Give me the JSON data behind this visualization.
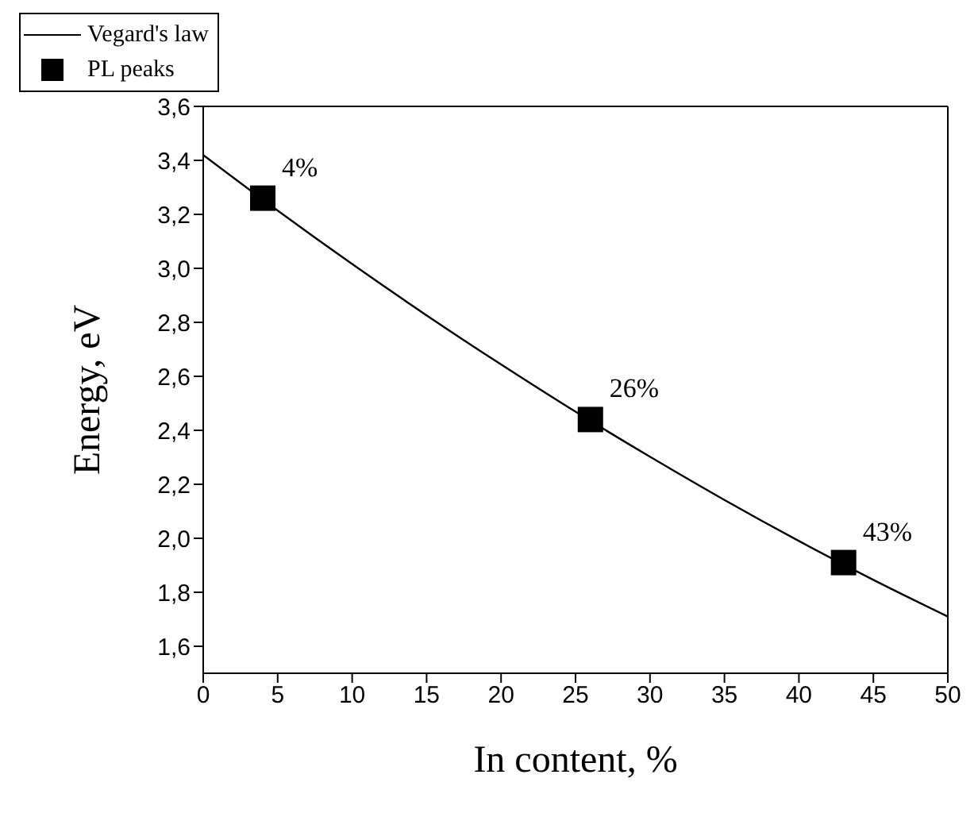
{
  "chart_data": {
    "type": "scatter",
    "xlabel": "In content, %",
    "ylabel": "Energy, eV",
    "xlim": [
      0,
      50
    ],
    "xticks": [
      0,
      5,
      10,
      15,
      20,
      25,
      30,
      35,
      40,
      45,
      50
    ],
    "ylim": [
      1.5,
      3.6
    ],
    "yticks": [
      {
        "value": 1.6,
        "label": "1,6"
      },
      {
        "value": 1.8,
        "label": "1,8"
      },
      {
        "value": 2.0,
        "label": "2,0"
      },
      {
        "value": 2.2,
        "label": "2,2"
      },
      {
        "value": 2.4,
        "label": "2,4"
      },
      {
        "value": 2.6,
        "label": "2,6"
      },
      {
        "value": 2.8,
        "label": "2,8"
      },
      {
        "value": 3.0,
        "label": "3,0"
      },
      {
        "value": 3.2,
        "label": "3,2"
      },
      {
        "value": 3.4,
        "label": "3,4"
      },
      {
        "value": 3.6,
        "label": "3,6"
      }
    ],
    "series": [
      {
        "name": "Vegard's law",
        "type": "line",
        "color": "#000000",
        "marker": "none",
        "x": [
          0,
          5,
          10,
          15,
          20,
          25,
          30,
          35,
          40,
          45,
          50
        ],
        "values": [
          3.42,
          3.214,
          3.016,
          2.826,
          2.644,
          2.469,
          2.302,
          2.142,
          1.99,
          1.846,
          1.71
        ]
      },
      {
        "name": "PL peaks",
        "type": "scatter",
        "color": "#000000",
        "marker": "square",
        "x": [
          4,
          26,
          43
        ],
        "values": [
          3.26,
          2.44,
          1.91
        ]
      }
    ],
    "annotations": [
      {
        "text": "4%",
        "x": 4,
        "y": 3.26
      },
      {
        "text": "26%",
        "x": 26,
        "y": 2.44
      },
      {
        "text": "43%",
        "x": 43,
        "y": 1.91
      }
    ],
    "legend": "top left",
    "grid": false
  }
}
